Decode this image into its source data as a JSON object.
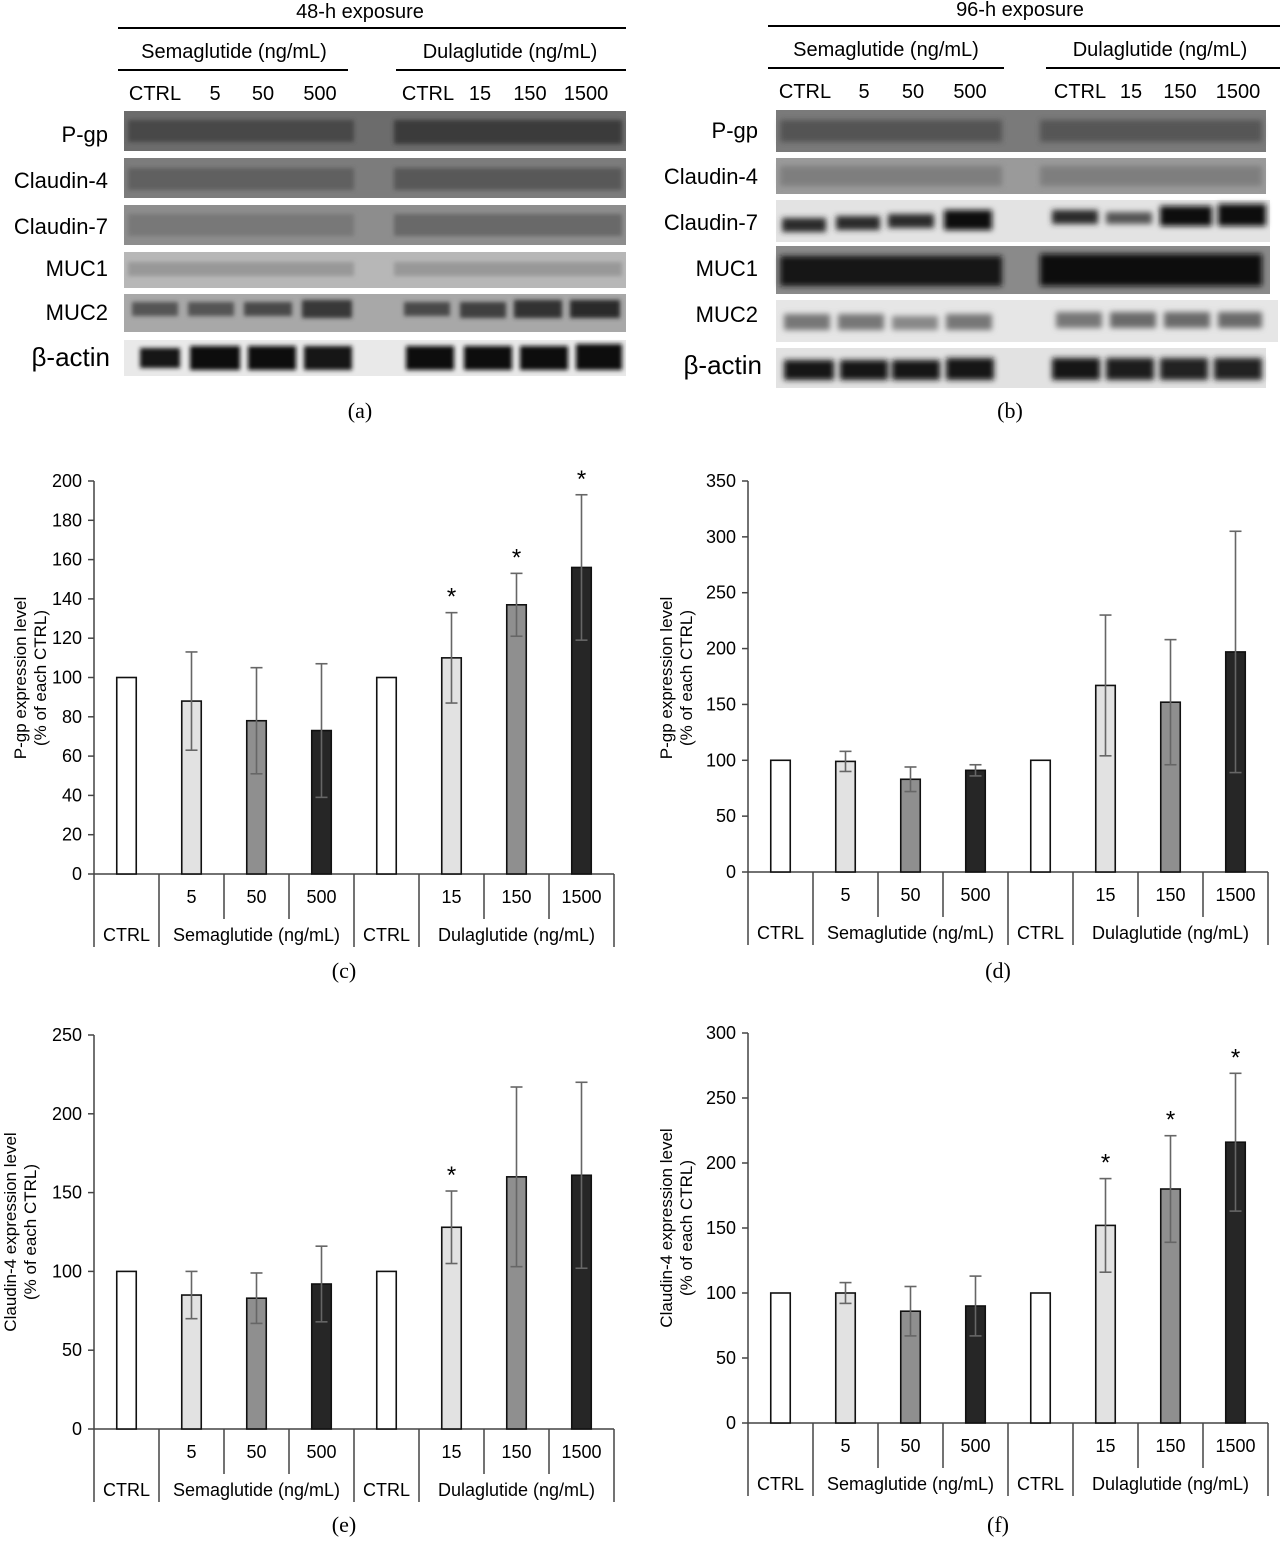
{
  "blots": [
    {
      "id": "a",
      "caption": "(a)",
      "exposure": "48-h exposure",
      "groups": [
        {
          "name": "Semaglutide (ng/mL)",
          "lanes": [
            "CTRL",
            "5",
            "50",
            "500"
          ]
        },
        {
          "name": "Dulaglutide (ng/mL)",
          "lanes": [
            "CTRL",
            "15",
            "150",
            "1500"
          ]
        }
      ],
      "rows": [
        "P-gp",
        "Claudin-4",
        "Claudin-7",
        "MUC1",
        "MUC2",
        "β-actin"
      ]
    },
    {
      "id": "b",
      "caption": "(b)",
      "exposure": "96-h exposure",
      "groups": [
        {
          "name": "Semaglutide (ng/mL)",
          "lanes": [
            "CTRL",
            "5",
            "50",
            "500"
          ]
        },
        {
          "name": "Dulaglutide (ng/mL)",
          "lanes": [
            "CTRL",
            "15",
            "150",
            "1500"
          ]
        }
      ],
      "rows": [
        "P-gp",
        "Claudin-4",
        "Claudin-7",
        "MUC1",
        "MUC2",
        "β-actin"
      ]
    }
  ],
  "chart_data": [
    {
      "id": "c",
      "type": "bar",
      "caption": "(c)",
      "ylabel": [
        "P-gp expression level",
        "(% of each CTRL)"
      ],
      "ylim": [
        0,
        200
      ],
      "ystep": 20,
      "categories": [
        "CTRL",
        "5",
        "50",
        "500",
        "CTRL",
        "15",
        "150",
        "1500"
      ],
      "tick_labels": [
        "",
        "5",
        "50",
        "500",
        "",
        "15",
        "150",
        "1500"
      ],
      "group_labels": [
        "CTRL",
        "Semaglutide (ng/mL)",
        "CTRL",
        "Dulaglutide (ng/mL)"
      ],
      "values": [
        100,
        88,
        78,
        73,
        100,
        110,
        137,
        156
      ],
      "errors": [
        0,
        25,
        27,
        34,
        0,
        23,
        16,
        37
      ],
      "significant": [
        false,
        false,
        false,
        false,
        false,
        true,
        true,
        true
      ],
      "sig_marker": "*",
      "colors": [
        "#ffffff",
        "#e2e2e2",
        "#8f8f8f",
        "#262626",
        "#ffffff",
        "#e2e2e2",
        "#8f8f8f",
        "#262626"
      ]
    },
    {
      "id": "d",
      "type": "bar",
      "caption": "(d)",
      "ylabel": [
        "P-gp expression level",
        "(% of each CTRL)"
      ],
      "ylim": [
        0,
        350
      ],
      "ystep": 50,
      "categories": [
        "CTRL",
        "5",
        "50",
        "500",
        "CTRL",
        "15",
        "150",
        "1500"
      ],
      "tick_labels": [
        "",
        "5",
        "50",
        "500",
        "",
        "15",
        "150",
        "1500"
      ],
      "group_labels": [
        "CTRL",
        "Semaglutide (ng/mL)",
        "CTRL",
        "Dulaglutide (ng/mL)"
      ],
      "values": [
        100,
        99,
        83,
        91,
        100,
        167,
        152,
        197
      ],
      "errors": [
        0,
        9,
        11,
        5,
        0,
        63,
        56,
        108
      ],
      "significant": [
        false,
        false,
        false,
        false,
        false,
        false,
        false,
        false
      ],
      "sig_marker": "*",
      "colors": [
        "#ffffff",
        "#e2e2e2",
        "#8f8f8f",
        "#262626",
        "#ffffff",
        "#e2e2e2",
        "#8f8f8f",
        "#262626"
      ]
    },
    {
      "id": "e",
      "type": "bar",
      "caption": "(e)",
      "ylabel": [
        "Claudin-4 expression level",
        "(% of each CTRL)"
      ],
      "ylim": [
        0,
        250
      ],
      "ystep": 50,
      "categories": [
        "CTRL",
        "5",
        "50",
        "500",
        "CTRL",
        "15",
        "150",
        "1500"
      ],
      "tick_labels": [
        "",
        "5",
        "50",
        "500",
        "",
        "15",
        "150",
        "1500"
      ],
      "group_labels": [
        "CTRL",
        "Semaglutide (ng/mL)",
        "CTRL",
        "Dulaglutide (ng/mL)"
      ],
      "values": [
        100,
        85,
        83,
        92,
        100,
        128,
        160,
        161
      ],
      "errors": [
        0,
        15,
        16,
        24,
        0,
        23,
        57,
        59
      ],
      "significant": [
        false,
        false,
        false,
        false,
        false,
        true,
        false,
        false
      ],
      "sig_marker": "*",
      "colors": [
        "#ffffff",
        "#e2e2e2",
        "#8f8f8f",
        "#262626",
        "#ffffff",
        "#e2e2e2",
        "#8f8f8f",
        "#262626"
      ]
    },
    {
      "id": "f",
      "type": "bar",
      "caption": "(f)",
      "ylabel": [
        "Claudin-4 expression level",
        "(% of each CTRL)"
      ],
      "ylim": [
        0,
        300
      ],
      "ystep": 50,
      "categories": [
        "CTRL",
        "5",
        "50",
        "500",
        "CTRL",
        "15",
        "150",
        "1500"
      ],
      "tick_labels": [
        "",
        "5",
        "50",
        "500",
        "",
        "15",
        "150",
        "1500"
      ],
      "group_labels": [
        "CTRL",
        "Semaglutide (ng/mL)",
        "CTRL",
        "Dulaglutide (ng/mL)"
      ],
      "values": [
        100,
        100,
        86,
        90,
        100,
        152,
        180,
        216
      ],
      "errors": [
        0,
        8,
        19,
        23,
        0,
        36,
        41,
        53
      ],
      "significant": [
        false,
        false,
        false,
        false,
        false,
        true,
        true,
        true
      ],
      "sig_marker": "*",
      "colors": [
        "#ffffff",
        "#e2e2e2",
        "#8f8f8f",
        "#262626",
        "#ffffff",
        "#e2e2e2",
        "#8f8f8f",
        "#262626"
      ]
    }
  ]
}
